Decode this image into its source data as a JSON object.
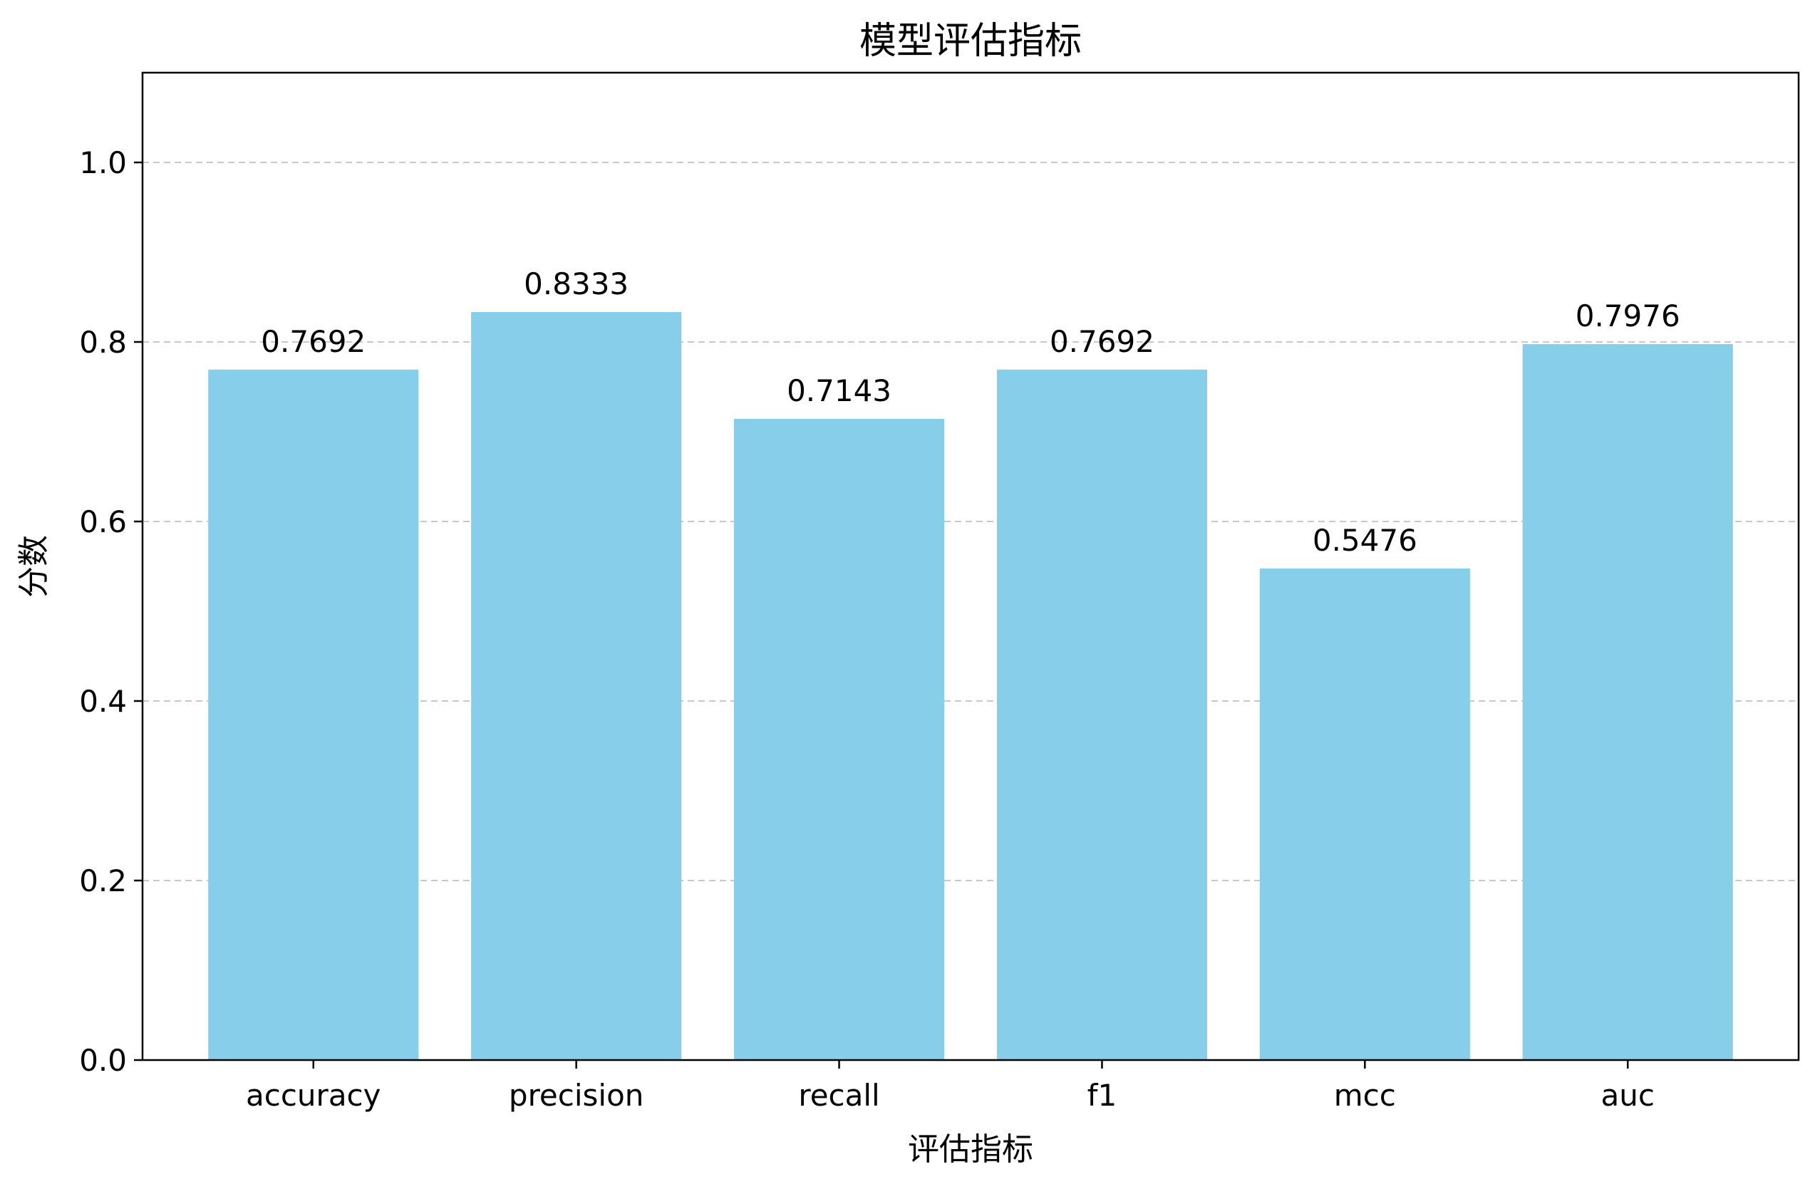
{
  "chart_data": {
    "type": "bar",
    "title": "模型评估指标",
    "xlabel": "评估指标",
    "ylabel": "分数",
    "categories": [
      "accuracy",
      "precision",
      "recall",
      "f1",
      "mcc",
      "auc"
    ],
    "values": [
      0.7692,
      0.8333,
      0.7143,
      0.7692,
      0.5476,
      0.7976
    ],
    "value_labels": [
      "0.7692",
      "0.8333",
      "0.7143",
      "0.7692",
      "0.5476",
      "0.7976"
    ],
    "ylim": [
      0,
      1.1
    ],
    "yticks": [
      0.0,
      0.2,
      0.4,
      0.6,
      0.8,
      1.0
    ],
    "ytick_labels": [
      "0.0",
      "0.2",
      "0.4",
      "0.6",
      "0.8",
      "1.0"
    ],
    "grid": "y-dashed",
    "bar_color": "#87CEEB",
    "grid_color": "#c8c8c8"
  }
}
